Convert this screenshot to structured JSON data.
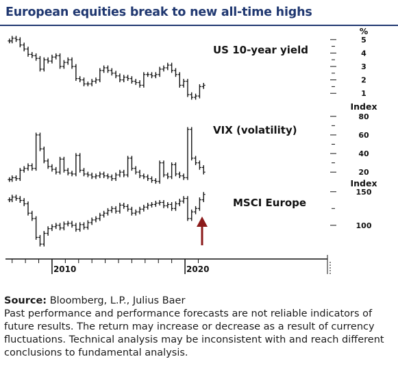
{
  "title": "European equities break to new all-time highs",
  "footer": {
    "source_label": "Source:",
    "source_text": "Bloomberg, L.P., Julius Baer",
    "disclaimer": "Past performance and performance forecasts are not reliable indicators of future results. The return may increase or decrease as a result of currency fluctuations. Technical analysis may be inconsistent with and reach different conclusions to fundamental analysis."
  },
  "colors": {
    "title": "#1f3770",
    "bars": "#111111",
    "arrow": "#8b1a1a"
  },
  "chart_data": [
    {
      "type": "line",
      "title": "US 10-year yield",
      "unit": "%",
      "ylim": [
        0.5,
        5.5
      ],
      "yticks": [
        1,
        2,
        3,
        4,
        5
      ],
      "ytick_labels": [
        "1",
        "2",
        "3",
        "4",
        "5"
      ],
      "x": [
        2006.8,
        2007.0,
        2007.3,
        2007.6,
        2007.9,
        2008.2,
        2008.5,
        2008.8,
        2009.1,
        2009.4,
        2009.7,
        2010.0,
        2010.3,
        2010.6,
        2010.9,
        2011.2,
        2011.5,
        2011.8,
        2012.1,
        2012.4,
        2012.7,
        2013.0,
        2013.3,
        2013.6,
        2013.9,
        2014.2,
        2014.5,
        2014.8,
        2015.1,
        2015.4,
        2015.7,
        2016.0,
        2016.3,
        2016.6,
        2016.9,
        2017.2,
        2017.5,
        2017.8,
        2018.1,
        2018.4,
        2018.7,
        2019.0,
        2019.3,
        2019.6,
        2019.9,
        2020.2,
        2020.5,
        2020.8,
        2021.1,
        2021.4
      ],
      "values": [
        4.9,
        5.1,
        5.0,
        4.6,
        4.3,
        3.9,
        3.8,
        3.6,
        2.8,
        3.5,
        3.4,
        3.7,
        3.8,
        3.0,
        3.3,
        3.5,
        3.0,
        2.1,
        2.0,
        1.7,
        1.7,
        1.9,
        2.0,
        2.7,
        2.9,
        2.7,
        2.5,
        2.3,
        2.0,
        2.2,
        2.1,
        1.9,
        1.8,
        1.6,
        2.4,
        2.4,
        2.3,
        2.4,
        2.8,
        2.9,
        3.1,
        2.7,
        2.4,
        1.6,
        1.9,
        0.9,
        0.7,
        0.8,
        1.5,
        1.6
      ]
    },
    {
      "type": "line",
      "title": "VIX (volatility)",
      "unit": "Index",
      "ylim": [
        15,
        85
      ],
      "yticks": [
        20,
        40,
        60,
        80
      ],
      "ytick_labels": [
        "20",
        "40",
        "60",
        "80"
      ],
      "x": [
        2006.8,
        2007.0,
        2007.3,
        2007.6,
        2007.9,
        2008.2,
        2008.5,
        2008.8,
        2009.1,
        2009.4,
        2009.7,
        2010.0,
        2010.3,
        2010.6,
        2010.9,
        2011.2,
        2011.5,
        2011.8,
        2012.1,
        2012.4,
        2012.7,
        2013.0,
        2013.3,
        2013.6,
        2013.9,
        2014.2,
        2014.5,
        2014.8,
        2015.1,
        2015.4,
        2015.7,
        2016.0,
        2016.3,
        2016.6,
        2016.9,
        2017.2,
        2017.5,
        2017.8,
        2018.1,
        2018.4,
        2018.7,
        2019.0,
        2019.3,
        2019.6,
        2019.9,
        2020.2,
        2020.5,
        2020.8,
        2021.1,
        2021.4
      ],
      "values": [
        12,
        14,
        13,
        22,
        24,
        27,
        24,
        60,
        45,
        32,
        26,
        23,
        20,
        34,
        22,
        19,
        18,
        38,
        22,
        18,
        17,
        15,
        16,
        18,
        16,
        15,
        13,
        17,
        20,
        17,
        35,
        24,
        20,
        16,
        15,
        13,
        11,
        10,
        30,
        17,
        15,
        28,
        18,
        16,
        14,
        66,
        35,
        30,
        25,
        20
      ]
    },
    {
      "type": "line",
      "title": "MSCI Europe",
      "unit": "Index",
      "ylim": [
        60,
        160
      ],
      "yticks": [
        100,
        150
      ],
      "ytick_labels": [
        "100",
        "150"
      ],
      "x": [
        2006.8,
        2007.0,
        2007.3,
        2007.6,
        2007.9,
        2008.2,
        2008.5,
        2008.8,
        2009.1,
        2009.4,
        2009.7,
        2010.0,
        2010.3,
        2010.6,
        2010.9,
        2011.2,
        2011.5,
        2011.8,
        2012.1,
        2012.4,
        2012.7,
        2013.0,
        2013.3,
        2013.6,
        2013.9,
        2014.2,
        2014.5,
        2014.8,
        2015.1,
        2015.4,
        2015.7,
        2016.0,
        2016.3,
        2016.6,
        2016.9,
        2017.2,
        2017.5,
        2017.8,
        2018.1,
        2018.4,
        2018.7,
        2019.0,
        2019.3,
        2019.6,
        2019.9,
        2020.2,
        2020.5,
        2020.8,
        2021.1,
        2021.4
      ],
      "values": [
        138,
        142,
        140,
        137,
        132,
        118,
        110,
        82,
        72,
        88,
        95,
        98,
        100,
        96,
        102,
        103,
        100,
        94,
        101,
        97,
        104,
        108,
        110,
        115,
        118,
        122,
        125,
        121,
        130,
        128,
        124,
        118,
        120,
        124,
        127,
        130,
        131,
        133,
        134,
        129,
        131,
        125,
        132,
        136,
        140,
        110,
        120,
        125,
        138,
        146
      ]
    }
  ],
  "x_axis": {
    "range": [
      2006.5,
      2021.8
    ],
    "labels": [
      "2010",
      "2020"
    ],
    "label_years": [
      2010,
      2020
    ]
  }
}
